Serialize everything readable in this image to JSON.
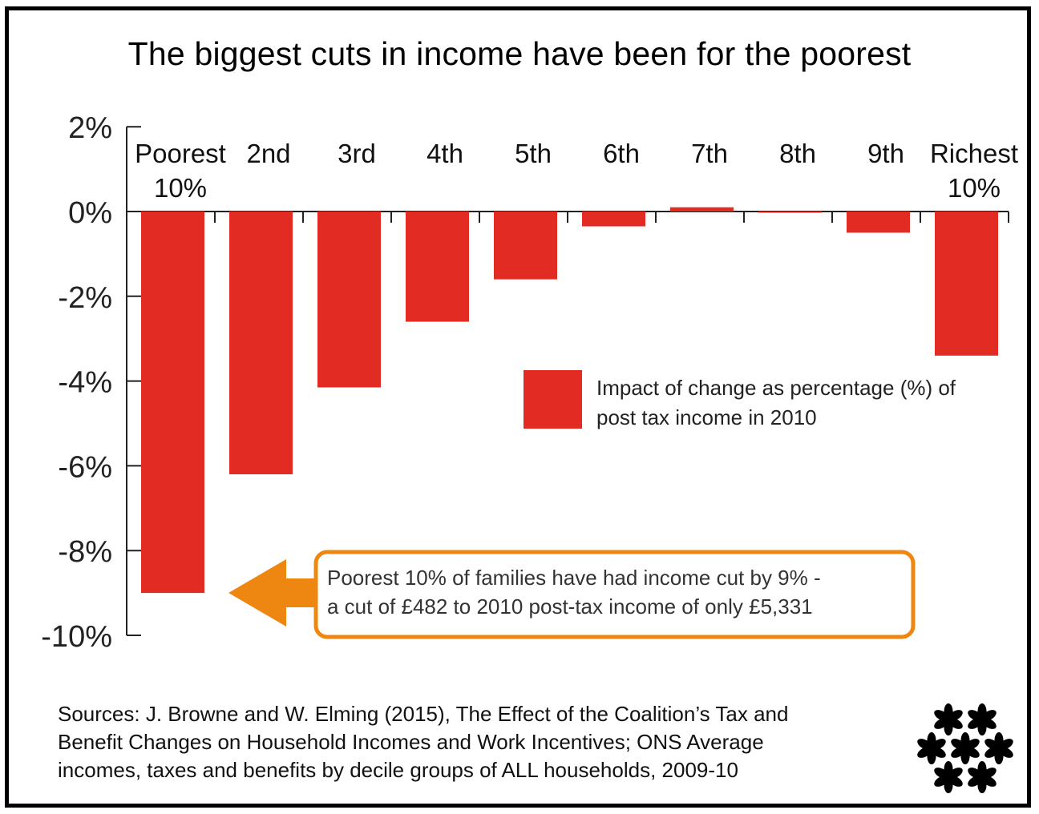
{
  "chart_data": {
    "type": "bar",
    "title": "The biggest cuts in income have been for the poorest",
    "categories": [
      [
        "Poorest",
        "10%"
      ],
      [
        "2nd"
      ],
      [
        "3rd"
      ],
      [
        "4th"
      ],
      [
        "5th"
      ],
      [
        "6th"
      ],
      [
        "7th"
      ],
      [
        "8th"
      ],
      [
        "9th"
      ],
      [
        "Richest",
        "10%"
      ]
    ],
    "series": [
      {
        "name": "Impact of change as percentage (%) of post tax income in 2010",
        "values": [
          -9.0,
          -6.2,
          -4.15,
          -2.6,
          -1.6,
          -0.35,
          0.1,
          -0.02,
          -0.5,
          -3.4
        ],
        "color": "#e22b22"
      }
    ],
    "yticks": [
      2,
      0,
      -2,
      -4,
      -6,
      -8,
      -10
    ],
    "ytick_labels": [
      "2%",
      "0%",
      "-2%",
      "-4%",
      "-6%",
      "-8%",
      "-10%"
    ],
    "ylim": [
      -10,
      2
    ],
    "legend_position": "right",
    "grid": false
  },
  "legend": {
    "label": "Impact of change as percentage (%) of post tax income in 2010",
    "color": "#e22b22"
  },
  "callout": {
    "text_line1": "Poorest 10% of families have had income cut by 9% -",
    "text_line2": "a cut of £482 to 2010 post-tax income of only £5,331",
    "border_color": "#ee8712",
    "arrow_color": "#ee8712"
  },
  "sources": {
    "line1": "Sources: J. Browne and W. Elming (2015), The Effect of the Coalition’s Tax and",
    "line2": "Benefit Changes on Household Incomes and Work Incentives; ONS Average",
    "line3": "incomes, taxes and benefits by decile groups of ALL households, 2009-10"
  },
  "logo": {
    "icon": "flower-cluster-logo-icon"
  }
}
